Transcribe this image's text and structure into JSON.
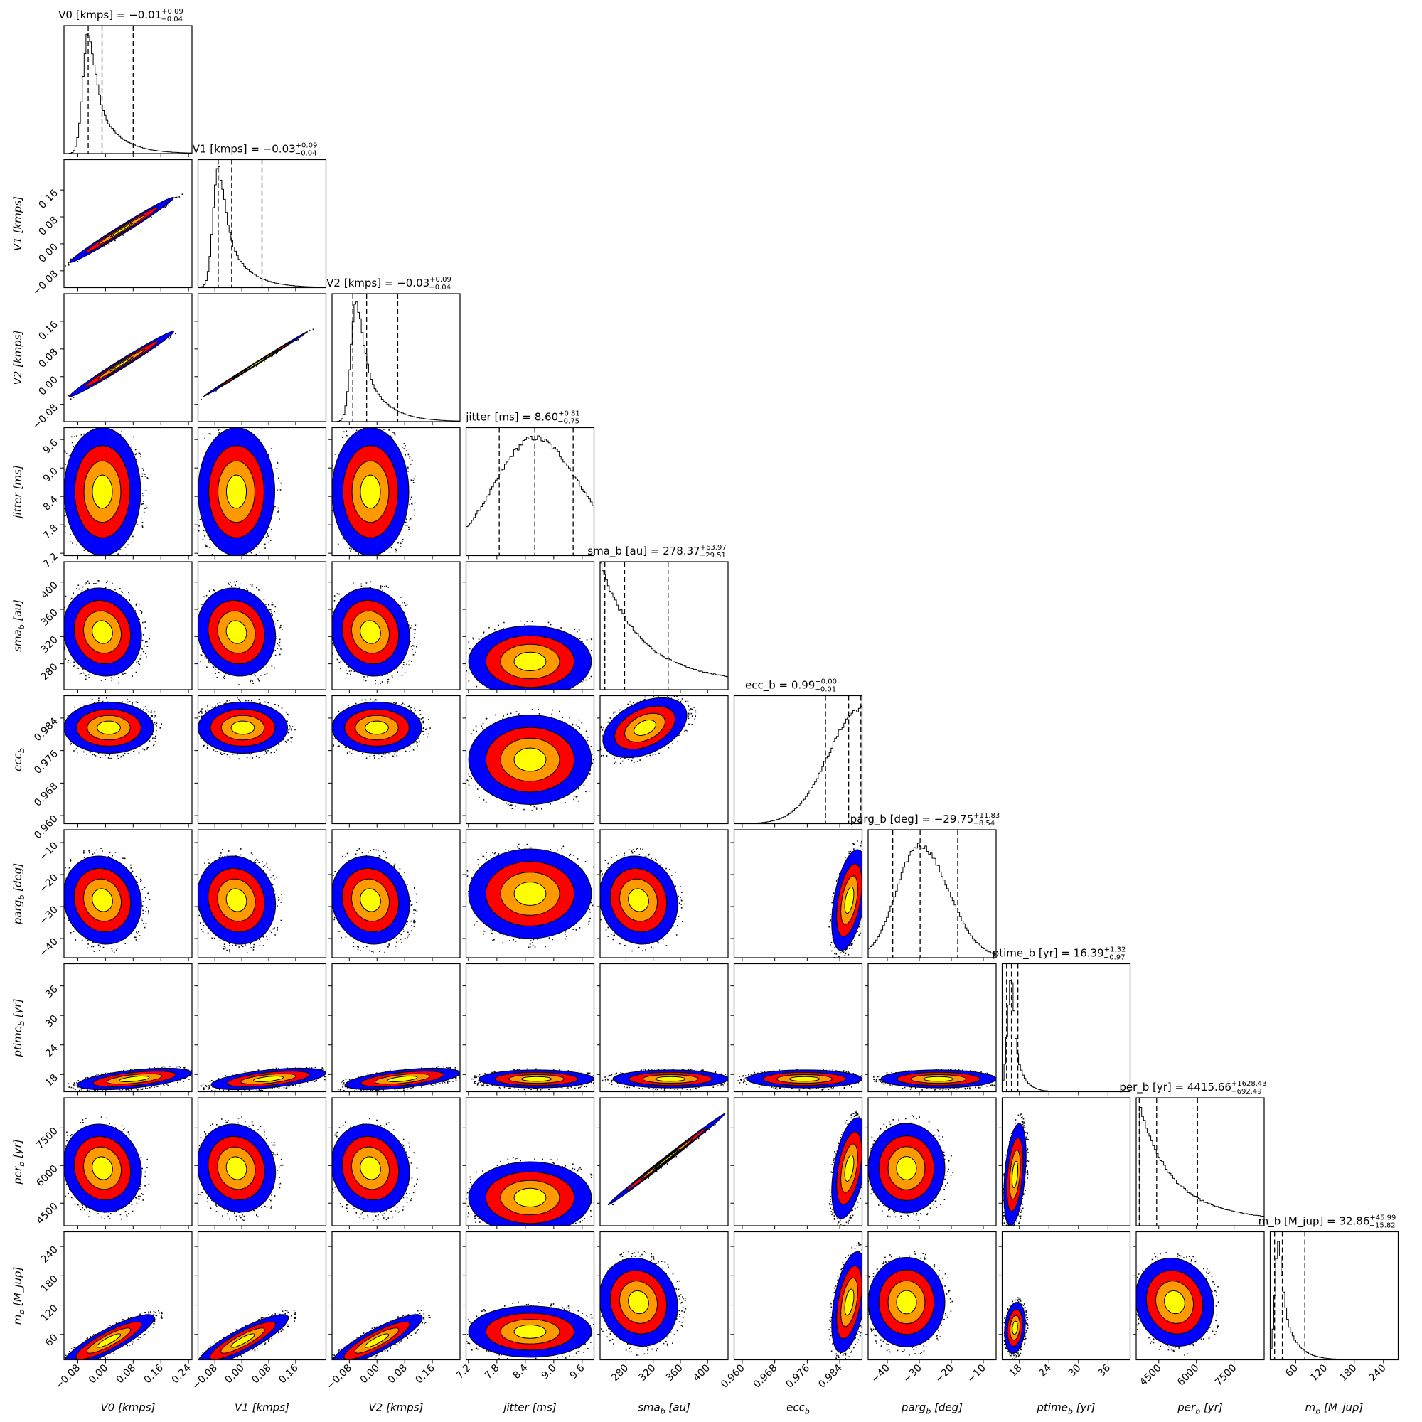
{
  "colors": {
    "level1": "#0000ff",
    "level2": "#ff0000",
    "level3": "#ff9900",
    "level4": "#ffff00",
    "contour": "#000000",
    "histogram": "#000000"
  },
  "chart_data": {
    "type": "corner",
    "grid": false,
    "parameters": [
      {
        "label": "V0 [kmps]",
        "median": -0.01,
        "plus": 0.09,
        "minus": 0.04,
        "title": "V0 [kmps] = −0.01",
        "title_up": "+0.09",
        "title_dn": "−0.04",
        "range": [
          -0.12,
          0.25
        ],
        "ticks": [
          -0.08,
          0.0,
          0.08,
          0.16,
          0.24
        ],
        "ticklabels": [
          "−0.08",
          "0.00",
          "0.08",
          "0.16",
          "0.24"
        ],
        "dist": {
          "kind": "skew",
          "mode": -0.05,
          "lw": 0.015,
          "rw": 0.06,
          "mode_y": 0.95
        },
        "quantiles": [
          -0.05,
          -0.01,
          0.08
        ]
      },
      {
        "label": "V1 [kmps]",
        "median": -0.03,
        "plus": 0.09,
        "minus": 0.04,
        "title": "V1 [kmps] = −0.03",
        "title_up": "+0.09",
        "title_dn": "−0.04",
        "range": [
          -0.13,
          0.25
        ],
        "ticks": [
          -0.08,
          0.0,
          0.08,
          0.16
        ],
        "ticklabels": [
          "−0.08",
          "0.00",
          "0.08",
          "0.16"
        ],
        "dist": {
          "kind": "skew",
          "mode": -0.07,
          "lw": 0.015,
          "rw": 0.06,
          "mode_y": 0.95
        },
        "quantiles": [
          -0.07,
          -0.03,
          0.06
        ]
      },
      {
        "label": "V2 [kmps]",
        "median": -0.03,
        "plus": 0.09,
        "minus": 0.04,
        "title": "V2 [kmps] = −0.03",
        "title_up": "+0.09",
        "title_dn": "−0.04",
        "range": [
          -0.13,
          0.24
        ],
        "ticks": [
          -0.08,
          0.0,
          0.08,
          0.16
        ],
        "ticklabels": [
          "−0.08",
          "0.00",
          "0.08",
          "0.16"
        ],
        "dist": {
          "kind": "skew",
          "mode": -0.06,
          "lw": 0.015,
          "rw": 0.06,
          "mode_y": 0.95
        },
        "quantiles": [
          -0.07,
          -0.03,
          0.06
        ]
      },
      {
        "label": "jitter [ms]",
        "median": 8.6,
        "plus": 0.81,
        "minus": 0.75,
        "title": "jitter [ms] = 8.60",
        "title_up": "+0.81",
        "title_dn": "−0.75",
        "range": [
          7.15,
          9.85
        ],
        "ticks": [
          7.2,
          7.8,
          8.4,
          9.0,
          9.6
        ],
        "ticklabels": [
          "7.2",
          "7.8",
          "8.4",
          "9.0",
          "9.6"
        ],
        "dist": {
          "kind": "gauss",
          "mode": 8.6,
          "lw": 0.85,
          "rw": 0.95,
          "mode_y": 0.92
        },
        "quantiles": [
          7.85,
          8.6,
          9.41
        ]
      },
      {
        "label": "sma_b [au]",
        "median": 278.37,
        "plus": 63.97,
        "minus": 29.51,
        "title": "sma_b [au] = 278.37",
        "title_up": "+63.97",
        "title_dn": "−29.51",
        "range": [
          242,
          430
        ],
        "ticks": [
          280,
          320,
          360,
          400
        ],
        "ticklabels": [
          "280",
          "320",
          "360",
          "400"
        ],
        "dist": {
          "kind": "decay",
          "mode": 243,
          "lw": 1,
          "rw": 50,
          "mode_y": 0.98
        },
        "quantiles": [
          249,
          278,
          342
        ]
      },
      {
        "label": "ecc_b",
        "median": 0.99,
        "plus": 0.0,
        "minus": 0.01,
        "title": "ecc_b = 0.99",
        "title_up": "+0.00",
        "title_dn": "−0.01",
        "range": [
          0.958,
          0.9895
        ],
        "ticks": [
          0.96,
          0.968,
          0.976,
          0.984
        ],
        "ticklabels": [
          "0.960",
          "0.968",
          "0.976",
          "0.984"
        ],
        "dist": {
          "kind": "rise",
          "mode": 0.9893,
          "lw": 0.008,
          "rw": 0.001,
          "mode_y": 0.9
        },
        "quantiles": [
          0.9805,
          0.9862,
          0.9892
        ]
      },
      {
        "label": "parg_b [deg]",
        "median": -29.75,
        "plus": 11.83,
        "minus": 8.54,
        "title": "parg_b [deg] = −29.75",
        "title_up": "+11.83",
        "title_dn": "−8.54",
        "range": [
          -46,
          -6
        ],
        "ticks": [
          -40,
          -30,
          -20,
          -10
        ],
        "ticklabels": [
          "−40",
          "−30",
          "−20",
          "−10"
        ],
        "dist": {
          "kind": "gauss",
          "mode": -30,
          "lw": 7,
          "rw": 9,
          "mode_y": 0.88
        },
        "quantiles": [
          -38.3,
          -29.75,
          -18
        ]
      },
      {
        "label": "ptime_b [yr]",
        "median": 16.39,
        "plus": 1.32,
        "minus": 0.97,
        "title": "ptime_b [yr] = 16.39",
        "title_up": "+1.32",
        "title_dn": "−0.97",
        "range": [
          14.5,
          40.5
        ],
        "ticks": [
          18,
          24,
          30,
          36
        ],
        "ticklabels": [
          "18",
          "24",
          "30",
          "36"
        ],
        "dist": {
          "kind": "skew",
          "mode": 16.4,
          "lw": 0.8,
          "rw": 1.6,
          "mode_y": 0.9
        },
        "quantiles": [
          15.4,
          16.39,
          17.7
        ]
      },
      {
        "label": "per_b [yr]",
        "median": 4415.66,
        "plus": 1628.43,
        "minus": 692.49,
        "title": "per_b [yr] = 4415.66",
        "title_up": "+1628.43",
        "title_dn": "−692.49",
        "range": [
          3600,
          8700
        ],
        "ticks": [
          4500,
          6000,
          7500
        ],
        "ticklabels": [
          "4500",
          "6000",
          "7500"
        ],
        "dist": {
          "kind": "decay",
          "mode": 3720,
          "lw": 1,
          "rw": 1100,
          "mode_y": 0.95
        },
        "quantiles": [
          3723,
          4416,
          6044
        ]
      },
      {
        "label": "m_b [M_jup]",
        "median": 32.86,
        "plus": 45.99,
        "minus": 15.82,
        "title": "m_b [M_jup] = 32.86",
        "title_up": "+45.99",
        "title_dn": "−15.82",
        "range": [
          8,
          270
        ],
        "ticks": [
          60,
          120,
          180,
          240
        ],
        "ticklabels": [
          "60",
          "120",
          "180",
          "240"
        ],
        "dist": {
          "kind": "skew",
          "mode": 25,
          "lw": 7,
          "rw": 25,
          "mode_y": 0.92
        },
        "quantiles": [
          17,
          32.86,
          78.85
        ]
      }
    ],
    "axis_labels": [
      {
        "base": "V0",
        "sub": "",
        "unit": "[kmps]"
      },
      {
        "base": "V1",
        "sub": "",
        "unit": "[kmps]"
      },
      {
        "base": "V2",
        "sub": "",
        "unit": "[kmps]"
      },
      {
        "base": "jitter",
        "sub": "",
        "unit": "[ms]"
      },
      {
        "base": "sma",
        "sub": "b",
        "unit": "[au]"
      },
      {
        "base": "ecc",
        "sub": "b",
        "unit": ""
      },
      {
        "base": "parg",
        "sub": "b",
        "unit": "[deg]"
      },
      {
        "base": "ptime",
        "sub": "b",
        "unit": "[yr]"
      },
      {
        "base": "per",
        "sub": "b",
        "unit": "[yr]"
      },
      {
        "base": "m",
        "sub": "b",
        "unit": "[M_jup]"
      }
    ],
    "contour_levels": [
      "level1",
      "level2",
      "level3",
      "level4"
    ]
  }
}
